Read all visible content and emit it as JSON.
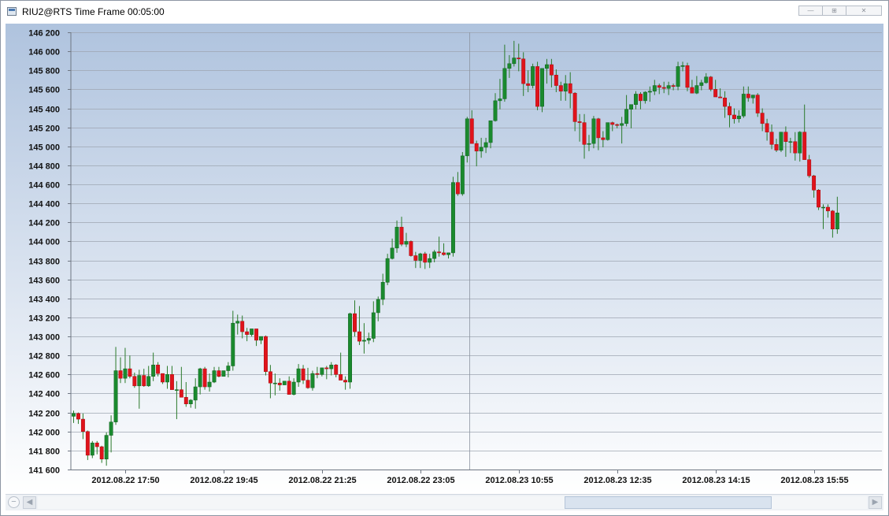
{
  "window": {
    "title": "RIU2@RTS Time Frame 00:05:00",
    "controls": {
      "minimize": "—",
      "maximize": "⊞",
      "close": "✕"
    }
  },
  "scrollbar": {
    "zoom_icon": "zoom-out-icon",
    "left_arrow": "◀",
    "right_arrow": "▶",
    "thumb_start_fraction": 0.635,
    "thumb_size_fraction": 0.25
  },
  "colors": {
    "up_candle": "#1a8a2e",
    "down_candle": "#e0131b",
    "wick": "#2a7a2a",
    "grid": "#9ea6b2",
    "bg_top": "#afc3de",
    "bg_bottom": "#ffffff",
    "text": "#111111"
  },
  "chart_data": {
    "type": "candlestick",
    "x_tick_labels": [
      "2012.08.22 17:50",
      "2012.08.22 19:45",
      "2012.08.22 21:25",
      "2012.08.22 23:05",
      "2012.08.23 10:55",
      "2012.08.23 12:35",
      "2012.08.23 14:15",
      "2012.08.23 15:55"
    ],
    "x_tick_candle_index": [
      11,
      32,
      53,
      74,
      95,
      116,
      137,
      158
    ],
    "y_ticks": [
      141600,
      141800,
      142000,
      142200,
      142400,
      142600,
      142800,
      143000,
      143200,
      143400,
      143600,
      143800,
      144000,
      144200,
      144400,
      144600,
      144800,
      145000,
      145200,
      145400,
      145600,
      145800,
      146000,
      146200
    ],
    "y_tick_labels": [
      "141 600",
      "141 800",
      "142 000",
      "142 200",
      "142 400",
      "142 600",
      "142 800",
      "143 000",
      "143 200",
      "143 400",
      "143 600",
      "143 800",
      "144 000",
      "144 200",
      "144 400",
      "144 600",
      "144 800",
      "145 000",
      "145 200",
      "145 400",
      "145 600",
      "145 800",
      "146 000",
      "146 200"
    ],
    "ylim": [
      141600,
      146200
    ],
    "grid": true,
    "candles_ohlc": [
      [
        142160,
        142220,
        142090,
        142190
      ],
      [
        142190,
        142200,
        142080,
        142130
      ],
      [
        142130,
        142190,
        141920,
        142000
      ],
      [
        142000,
        142010,
        141700,
        141750
      ],
      [
        141750,
        141900,
        141720,
        141880
      ],
      [
        141880,
        141900,
        141760,
        141840
      ],
      [
        141840,
        141850,
        141670,
        141710
      ],
      [
        141710,
        141990,
        141640,
        141960
      ],
      [
        141960,
        142170,
        141780,
        142100
      ],
      [
        142100,
        142890,
        142070,
        142640
      ],
      [
        142640,
        142780,
        142510,
        142560
      ],
      [
        142560,
        142880,
        142510,
        142660
      ],
      [
        142660,
        142800,
        142560,
        142580
      ],
      [
        142580,
        142620,
        142460,
        142480
      ],
      [
        142480,
        142650,
        142240,
        142590
      ],
      [
        142590,
        142660,
        142470,
        142480
      ],
      [
        142480,
        142690,
        142470,
        142580
      ],
      [
        142580,
        142830,
        142530,
        142700
      ],
      [
        142700,
        142730,
        142580,
        142610
      ],
      [
        142610,
        142610,
        142500,
        142520
      ],
      [
        142520,
        142690,
        142450,
        142600
      ],
      [
        142600,
        142690,
        142450,
        142440
      ],
      [
        142440,
        142530,
        142130,
        142440
      ],
      [
        142440,
        142680,
        142380,
        142360
      ],
      [
        142360,
        142520,
        142260,
        142290
      ],
      [
        142290,
        142340,
        142250,
        142330
      ],
      [
        142330,
        142560,
        142240,
        142470
      ],
      [
        142470,
        142670,
        142390,
        142660
      ],
      [
        142660,
        142680,
        142440,
        142470
      ],
      [
        142470,
        142610,
        142420,
        142520
      ],
      [
        142520,
        142680,
        142510,
        142640
      ],
      [
        142640,
        142680,
        142570,
        142580
      ],
      [
        142580,
        142640,
        142580,
        142640
      ],
      [
        142640,
        142730,
        142570,
        142690
      ],
      [
        142690,
        143270,
        142640,
        143140
      ],
      [
        143140,
        143230,
        143020,
        143160
      ],
      [
        143160,
        143220,
        142980,
        143050
      ],
      [
        143050,
        143090,
        142950,
        143020
      ],
      [
        143020,
        143080,
        143000,
        143080
      ],
      [
        143080,
        143080,
        142900,
        142960
      ],
      [
        142960,
        143000,
        142920,
        143000
      ],
      [
        143000,
        143010,
        142590,
        142630
      ],
      [
        142630,
        142700,
        142350,
        142510
      ],
      [
        142510,
        142610,
        142380,
        142510
      ],
      [
        142510,
        142560,
        142430,
        142490
      ],
      [
        142490,
        142530,
        142490,
        142530
      ],
      [
        142530,
        142580,
        142410,
        142390
      ],
      [
        142390,
        142560,
        142380,
        142520
      ],
      [
        142520,
        142710,
        142470,
        142660
      ],
      [
        142660,
        142700,
        142500,
        142540
      ],
      [
        142540,
        142670,
        142450,
        142460
      ],
      [
        142460,
        142640,
        142430,
        142610
      ],
      [
        142610,
        142680,
        142560,
        142600
      ],
      [
        142600,
        142670,
        142580,
        142670
      ],
      [
        142670,
        142690,
        142550,
        142660
      ],
      [
        142660,
        142730,
        142590,
        142700
      ],
      [
        142700,
        142710,
        142570,
        142600
      ],
      [
        142600,
        142830,
        142550,
        142540
      ],
      [
        142540,
        142580,
        142440,
        142520
      ],
      [
        142520,
        143250,
        142450,
        143240
      ],
      [
        143240,
        143380,
        143000,
        143050
      ],
      [
        143050,
        143320,
        142910,
        142950
      ],
      [
        142950,
        143140,
        142820,
        142960
      ],
      [
        142960,
        143040,
        142920,
        142980
      ],
      [
        142980,
        143370,
        142940,
        143250
      ],
      [
        143250,
        143420,
        143160,
        143390
      ],
      [
        143390,
        143660,
        143330,
        143570
      ],
      [
        143570,
        143870,
        143540,
        143820
      ],
      [
        143820,
        144030,
        143810,
        143930
      ],
      [
        143930,
        144220,
        143880,
        144150
      ],
      [
        144150,
        144260,
        143950,
        143970
      ],
      [
        143970,
        144090,
        143940,
        144000
      ],
      [
        144000,
        144010,
        143840,
        143850
      ],
      [
        143850,
        143890,
        143720,
        143800
      ],
      [
        143800,
        143880,
        143720,
        143870
      ],
      [
        143870,
        143890,
        143710,
        143780
      ],
      [
        143780,
        143870,
        143720,
        143820
      ],
      [
        143820,
        143910,
        143780,
        143890
      ],
      [
        143890,
        144050,
        143840,
        143880
      ],
      [
        143880,
        143980,
        143850,
        143860
      ],
      [
        143860,
        143880,
        143820,
        143880
      ],
      [
        143880,
        144680,
        143840,
        144620
      ],
      [
        144620,
        144730,
        144480,
        144500
      ],
      [
        144500,
        144940,
        144480,
        144900
      ],
      [
        144900,
        145310,
        144830,
        145290
      ],
      [
        145290,
        145380,
        145150,
        145030
      ],
      [
        145030,
        145060,
        144790,
        144950
      ],
      [
        144950,
        145090,
        144880,
        144990
      ],
      [
        144990,
        145090,
        144930,
        145040
      ],
      [
        145040,
        145270,
        144980,
        145270
      ],
      [
        145270,
        145560,
        145260,
        145480
      ],
      [
        145480,
        145710,
        145390,
        145500
      ],
      [
        145500,
        146070,
        145470,
        145820
      ],
      [
        145820,
        145960,
        145720,
        145870
      ],
      [
        145870,
        146110,
        145840,
        145930
      ],
      [
        145930,
        146080,
        145790,
        145920
      ],
      [
        145920,
        145990,
        145530,
        145660
      ],
      [
        145660,
        145800,
        145570,
        145640
      ],
      [
        145640,
        145870,
        145610,
        145840
      ],
      [
        145840,
        145890,
        145380,
        145420
      ],
      [
        145420,
        145560,
        145360,
        145820
      ],
      [
        145820,
        145920,
        145660,
        145860
      ],
      [
        145860,
        145920,
        145620,
        145750
      ],
      [
        145750,
        145810,
        145570,
        145640
      ],
      [
        145640,
        145680,
        145480,
        145580
      ],
      [
        145580,
        145750,
        145480,
        145660
      ],
      [
        145660,
        145780,
        145400,
        145560
      ],
      [
        145560,
        145570,
        145160,
        145260
      ],
      [
        145260,
        145340,
        145050,
        145250
      ],
      [
        145250,
        145340,
        144870,
        145020
      ],
      [
        145020,
        145120,
        144950,
        145030
      ],
      [
        145030,
        145320,
        144980,
        145290
      ],
      [
        145290,
        145300,
        144960,
        145090
      ],
      [
        145090,
        145160,
        144990,
        145070
      ],
      [
        145070,
        145230,
        145060,
        145250
      ],
      [
        145250,
        145260,
        145160,
        145230
      ],
      [
        145230,
        145240,
        145190,
        145220
      ],
      [
        145220,
        145310,
        145030,
        145240
      ],
      [
        145240,
        145540,
        145210,
        145390
      ],
      [
        145390,
        145420,
        145190,
        145440
      ],
      [
        145440,
        145580,
        145390,
        145550
      ],
      [
        145550,
        145570,
        145390,
        145480
      ],
      [
        145480,
        145580,
        145450,
        145570
      ],
      [
        145570,
        145630,
        145470,
        145580
      ],
      [
        145580,
        145700,
        145540,
        145640
      ],
      [
        145640,
        145660,
        145550,
        145620
      ],
      [
        145620,
        145680,
        145560,
        145610
      ],
      [
        145610,
        145680,
        145540,
        145640
      ],
      [
        145640,
        145660,
        145590,
        145630
      ],
      [
        145630,
        145890,
        145590,
        145840
      ],
      [
        145840,
        145890,
        145790,
        145850
      ],
      [
        145850,
        145880,
        145580,
        145620
      ],
      [
        145620,
        145700,
        145560,
        145560
      ],
      [
        145560,
        145740,
        145550,
        145640
      ],
      [
        145640,
        145700,
        145590,
        145670
      ],
      [
        145670,
        145770,
        145660,
        145730
      ],
      [
        145730,
        145740,
        145580,
        145600
      ],
      [
        145600,
        145700,
        145540,
        145520
      ],
      [
        145520,
        145610,
        145510,
        145510
      ],
      [
        145510,
        145580,
        145300,
        145420
      ],
      [
        145420,
        145460,
        145200,
        145330
      ],
      [
        145330,
        145400,
        145240,
        145290
      ],
      [
        145290,
        145380,
        145250,
        145320
      ],
      [
        145320,
        145630,
        145300,
        145550
      ],
      [
        145550,
        145630,
        145470,
        145510
      ],
      [
        145510,
        145540,
        145450,
        145540
      ],
      [
        145540,
        145560,
        145310,
        145350
      ],
      [
        145350,
        145400,
        145160,
        145240
      ],
      [
        145240,
        145290,
        145060,
        145150
      ],
      [
        145150,
        145230,
        144970,
        145020
      ],
      [
        145020,
        145080,
        144940,
        144960
      ],
      [
        144960,
        145150,
        144940,
        145150
      ],
      [
        145150,
        145210,
        144890,
        145050
      ],
      [
        145050,
        145090,
        144930,
        145050
      ],
      [
        145050,
        145150,
        144850,
        144930
      ],
      [
        144930,
        145160,
        144840,
        145150
      ],
      [
        145150,
        145440,
        145020,
        144860
      ],
      [
        144860,
        144910,
        144670,
        144690
      ],
      [
        144690,
        144700,
        144460,
        144540
      ],
      [
        144540,
        144550,
        144330,
        144360
      ],
      [
        144360,
        144390,
        144130,
        144360
      ],
      [
        144360,
        144390,
        144250,
        144320
      ],
      [
        144320,
        144330,
        144040,
        144130
      ],
      [
        144130,
        144470,
        144080,
        144300
      ]
    ]
  }
}
